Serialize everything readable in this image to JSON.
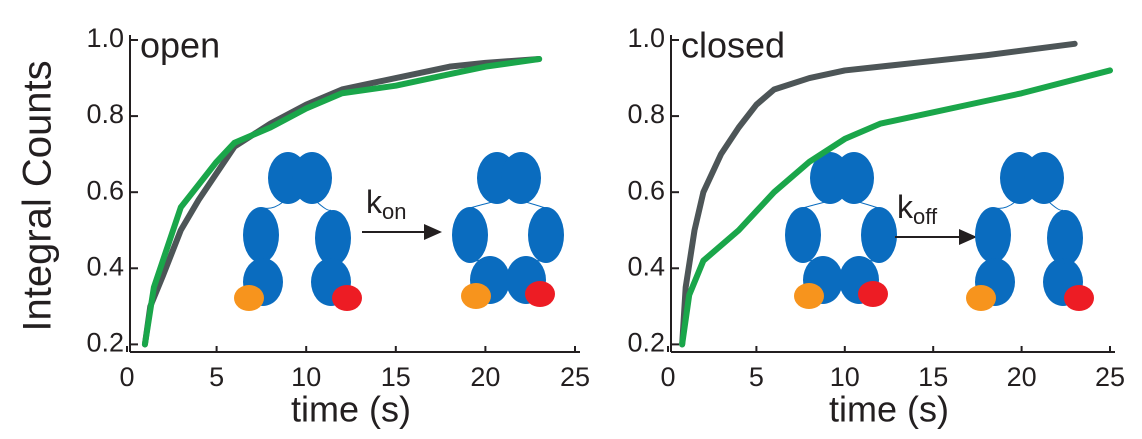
{
  "chart_data": [
    {
      "type": "line",
      "panel_label": "open",
      "y_label": "Integral Counts",
      "x_label": "time (s)",
      "annotation": {
        "text": "k",
        "subscript": "on"
      },
      "xlim": [
        0,
        25
      ],
      "xticks": [
        0,
        5,
        10,
        15,
        20,
        25
      ],
      "ylim": [
        0.18,
        1.0
      ],
      "yticks": [
        0.2,
        0.4,
        0.6,
        0.8,
        {
          "value": 1,
          "label": "1.0"
        }
      ],
      "series": [
        {
          "color": "#4d5557",
          "x": [
            1,
            1.3,
            2,
            3,
            4,
            5,
            6,
            7,
            8,
            10,
            12,
            15,
            18,
            20,
            23
          ],
          "values": [
            0.2,
            0.3,
            0.38,
            0.5,
            0.58,
            0.65,
            0.72,
            0.75,
            0.78,
            0.83,
            0.87,
            0.9,
            0.93,
            0.94,
            0.95
          ]
        },
        {
          "color": "#1aa64a",
          "x": [
            1,
            1.5,
            2,
            3,
            4,
            5,
            6,
            8,
            10,
            12,
            15,
            18,
            20,
            23
          ],
          "values": [
            0.2,
            0.35,
            0.42,
            0.56,
            0.62,
            0.68,
            0.73,
            0.77,
            0.82,
            0.86,
            0.88,
            0.91,
            0.93,
            0.95
          ]
        }
      ]
    },
    {
      "type": "line",
      "panel_label": "closed",
      "x_label": "time (s)",
      "annotation": {
        "text": "k",
        "subscript": "off"
      },
      "xlim": [
        0,
        25
      ],
      "xticks": [
        0,
        5,
        10,
        15,
        20,
        25
      ],
      "ylim": [
        0.18,
        1.0
      ],
      "yticks": [
        0.2,
        0.4,
        0.6,
        0.8,
        {
          "value": 1,
          "label": "1.0"
        }
      ],
      "series": [
        {
          "color": "#4d5557",
          "x": [
            0.8,
            1,
            1.5,
            2,
            3,
            4,
            5,
            6,
            8,
            10,
            14,
            18,
            23
          ],
          "values": [
            0.2,
            0.35,
            0.5,
            0.6,
            0.7,
            0.77,
            0.83,
            0.87,
            0.9,
            0.92,
            0.94,
            0.96,
            0.99
          ]
        },
        {
          "color": "#1aa64a",
          "x": [
            0.8,
            1.2,
            2,
            4,
            5,
            6,
            8,
            10,
            12,
            15,
            18,
            20,
            25
          ],
          "values": [
            0.2,
            0.33,
            0.42,
            0.5,
            0.55,
            0.6,
            0.68,
            0.74,
            0.78,
            0.81,
            0.84,
            0.86,
            0.92
          ]
        }
      ]
    }
  ]
}
